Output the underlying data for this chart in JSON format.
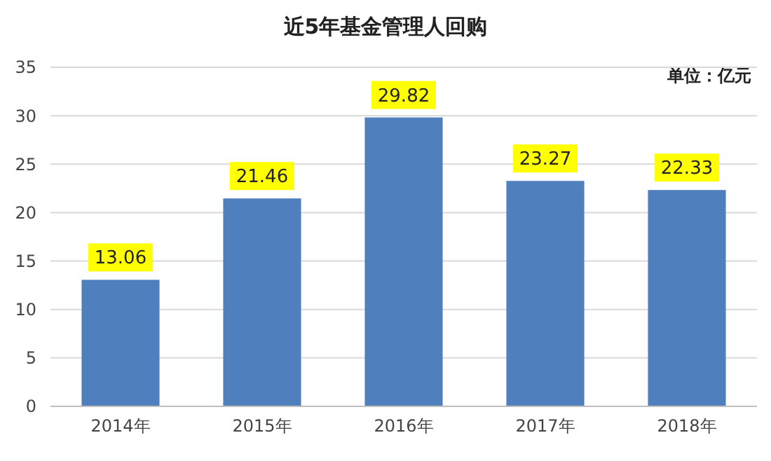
{
  "chart_data": {
    "type": "bar",
    "title": "近5年基金管理人回购",
    "annotations": [
      "单位：亿元"
    ],
    "categories": [
      "2014年",
      "2015年",
      "2016年",
      "2017年",
      "2018年"
    ],
    "values": [
      13.06,
      21.46,
      29.82,
      23.27,
      22.33
    ],
    "color": "#4f7fbd",
    "ylim": [
      0,
      35
    ],
    "yticks": [
      0,
      5,
      10,
      15,
      20,
      25,
      30,
      35
    ],
    "grid": "y",
    "data_labels": true
  }
}
